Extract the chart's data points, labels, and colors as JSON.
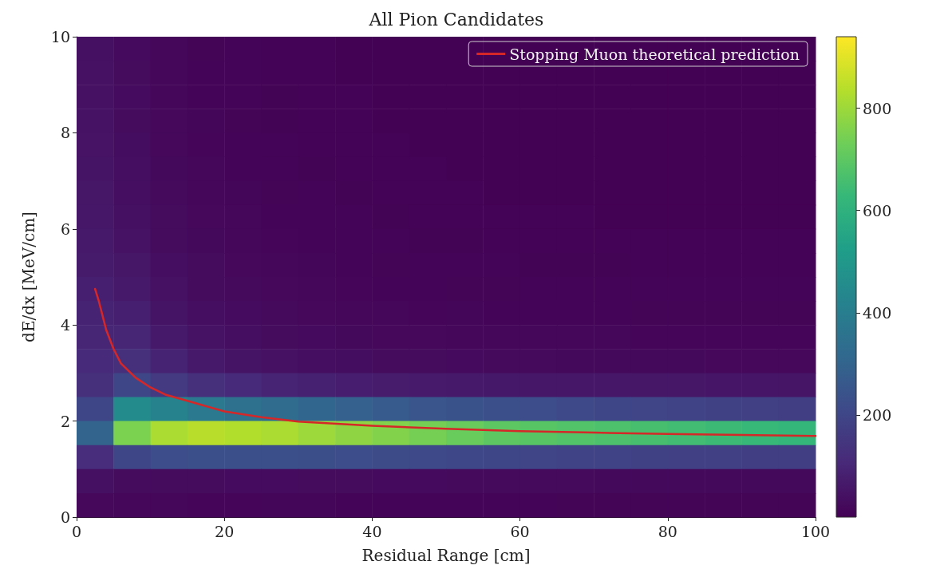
{
  "chart_data": {
    "type": "heatmap",
    "title": "All Pion Candidates",
    "xlabel": "Residual Range [cm]",
    "ylabel": "dE/dx [MeV/cm]",
    "x": [
      2.5,
      7.5,
      12.5,
      17.5,
      22.5,
      27.5,
      32.5,
      37.5,
      42.5,
      47.5,
      52.5,
      57.5,
      62.5,
      67.5,
      72.5,
      77.5,
      82.5,
      87.5,
      92.5,
      97.5
    ],
    "y": [
      9.75,
      9.25,
      8.75,
      8.25,
      7.75,
      7.25,
      6.75,
      6.25,
      5.75,
      5.25,
      4.75,
      4.25,
      3.75,
      3.25,
      2.75,
      2.25,
      1.75,
      1.25,
      0.75,
      0.25
    ],
    "cells": [
      [
        40,
        25,
        15,
        10,
        8,
        6,
        5,
        4,
        4,
        3,
        3,
        3,
        3,
        2,
        2,
        2,
        2,
        2,
        2,
        2
      ],
      [
        42,
        26,
        16,
        11,
        8,
        6,
        5,
        4,
        4,
        3,
        3,
        3,
        3,
        2,
        2,
        2,
        2,
        2,
        2,
        2
      ],
      [
        44,
        28,
        17,
        12,
        9,
        7,
        5,
        5,
        4,
        4,
        3,
        3,
        3,
        3,
        2,
        2,
        2,
        2,
        2,
        2
      ],
      [
        46,
        30,
        18,
        13,
        10,
        7,
        6,
        5,
        4,
        4,
        4,
        3,
        3,
        3,
        3,
        2,
        2,
        2,
        2,
        2
      ],
      [
        48,
        32,
        20,
        14,
        11,
        8,
        6,
        5,
        5,
        4,
        4,
        4,
        3,
        3,
        3,
        3,
        3,
        2,
        2,
        2
      ],
      [
        50,
        34,
        22,
        15,
        12,
        9,
        7,
        6,
        5,
        5,
        4,
        4,
        4,
        3,
        3,
        3,
        3,
        3,
        3,
        3
      ],
      [
        55,
        36,
        24,
        17,
        13,
        10,
        8,
        7,
        6,
        5,
        5,
        4,
        4,
        4,
        4,
        3,
        3,
        3,
        3,
        3
      ],
      [
        60,
        40,
        27,
        19,
        15,
        12,
        9,
        8,
        7,
        6,
        6,
        5,
        5,
        5,
        4,
        4,
        4,
        4,
        4,
        4
      ],
      [
        65,
        45,
        30,
        22,
        17,
        14,
        11,
        9,
        8,
        7,
        7,
        6,
        6,
        6,
        5,
        5,
        5,
        5,
        5,
        5
      ],
      [
        70,
        55,
        35,
        26,
        20,
        16,
        13,
        11,
        10,
        9,
        8,
        8,
        7,
        7,
        7,
        6,
        6,
        6,
        6,
        6
      ],
      [
        80,
        65,
        42,
        30,
        24,
        19,
        16,
        14,
        12,
        11,
        10,
        10,
        9,
        9,
        8,
        8,
        8,
        8,
        8,
        8
      ],
      [
        90,
        80,
        50,
        36,
        28,
        23,
        20,
        17,
        15,
        14,
        13,
        12,
        12,
        11,
        11,
        10,
        10,
        10,
        10,
        10
      ],
      [
        100,
        100,
        65,
        45,
        35,
        29,
        25,
        22,
        20,
        18,
        17,
        16,
        16,
        15,
        15,
        14,
        14,
        14,
        14,
        14
      ],
      [
        110,
        130,
        90,
        65,
        50,
        42,
        36,
        32,
        29,
        27,
        25,
        24,
        23,
        22,
        22,
        21,
        21,
        20,
        20,
        20
      ],
      [
        130,
        200,
        160,
        130,
        110,
        95,
        85,
        78,
        72,
        68,
        64,
        62,
        60,
        58,
        57,
        56,
        55,
        54,
        54,
        53
      ],
      [
        200,
        450,
        420,
        380,
        350,
        330,
        310,
        290,
        270,
        250,
        240,
        230,
        220,
        210,
        200,
        195,
        190,
        185,
        180,
        175
      ],
      [
        300,
        750,
        820,
        840,
        830,
        820,
        800,
        780,
        760,
        740,
        720,
        700,
        690,
        680,
        670,
        660,
        650,
        640,
        630,
        620
      ],
      [
        120,
        200,
        220,
        230,
        230,
        230,
        225,
        220,
        215,
        210,
        205,
        200,
        195,
        190,
        190,
        185,
        180,
        180,
        175,
        175
      ],
      [
        40,
        30,
        30,
        30,
        28,
        28,
        26,
        26,
        25,
        25,
        24,
        24,
        23,
        23,
        22,
        22,
        22,
        21,
        21,
        21
      ],
      [
        20,
        15,
        15,
        14,
        14,
        13,
        13,
        12,
        12,
        12,
        11,
        11,
        11,
        10,
        10,
        10,
        10,
        10,
        10,
        10
      ]
    ],
    "clim": [
      0,
      940
    ],
    "cticks": [
      200,
      400,
      600,
      800
    ],
    "series": [
      {
        "type": "line",
        "name": "Stopping Muon theoretical prediction",
        "color": "#d62728",
        "x": [
          2.5,
          3,
          4,
          5,
          6,
          8,
          10,
          12,
          15,
          20,
          25,
          30,
          40,
          50,
          60,
          70,
          80,
          90,
          100
        ],
        "values": [
          4.75,
          4.5,
          3.9,
          3.5,
          3.2,
          2.9,
          2.7,
          2.55,
          2.42,
          2.2,
          2.08,
          1.99,
          1.9,
          1.84,
          1.79,
          1.76,
          1.73,
          1.71,
          1.69
        ]
      }
    ],
    "xlim": [
      0,
      100
    ],
    "xticks": [
      0,
      20,
      40,
      60,
      80,
      100
    ],
    "ylim": [
      0,
      10
    ],
    "yticks": [
      0,
      2,
      4,
      6,
      8,
      10
    ],
    "legend": "top right",
    "grid": false,
    "line_style": "solid",
    "marker": "none"
  }
}
